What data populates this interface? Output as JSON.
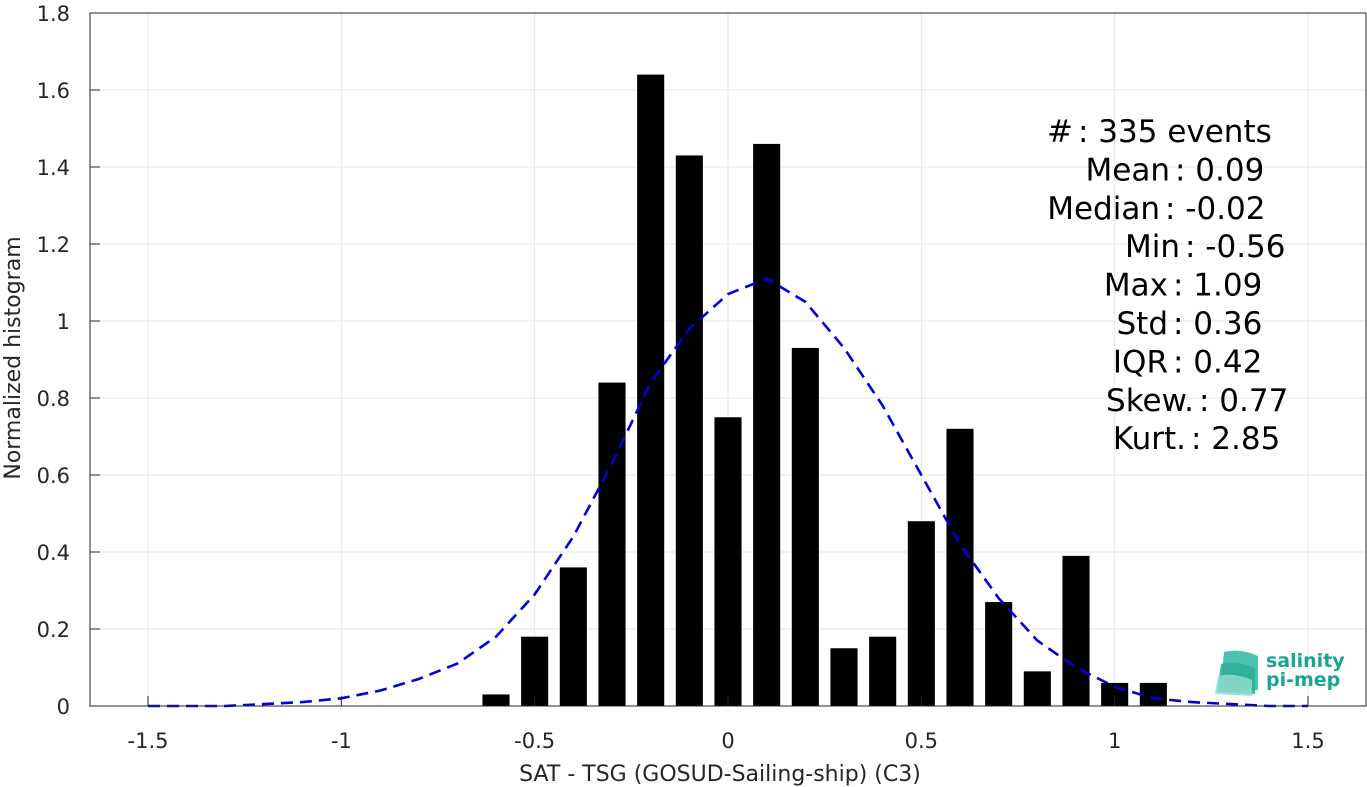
{
  "chart_data": {
    "type": "bar",
    "xlabel": "SAT - TSG (GOSUD-Sailing-ship) (C3)",
    "ylabel": "Normalized histogram",
    "xlim": [
      -1.65,
      1.65
    ],
    "ylim": [
      0,
      1.8
    ],
    "x_ticks": [
      -1.5,
      -1,
      -0.5,
      0,
      0.5,
      1,
      1.5
    ],
    "x_tick_labels": [
      "-1.5",
      "-1",
      "-0.5",
      "0",
      "0.5",
      "1",
      "1.5"
    ],
    "y_ticks": [
      0,
      0.2,
      0.4,
      0.6,
      0.8,
      1,
      1.2,
      1.4,
      1.6,
      1.8
    ],
    "y_tick_labels": [
      "0",
      "0.2",
      "0.4",
      "0.6",
      "0.8",
      "1",
      "1.2",
      "1.4",
      "1.6",
      "1.8"
    ],
    "grid": true,
    "bar_color": "#000000",
    "bar_width": 0.07,
    "bins": {
      "x": [
        -0.6,
        -0.5,
        -0.4,
        -0.3,
        -0.2,
        -0.1,
        0.0,
        0.1,
        0.2,
        0.3,
        0.4,
        0.5,
        0.6,
        0.7,
        0.8,
        0.9,
        1.0,
        1.1
      ],
      "values": [
        0.03,
        0.18,
        0.36,
        0.84,
        1.64,
        1.43,
        0.75,
        1.46,
        0.93,
        0.15,
        0.18,
        0.48,
        0.72,
        0.27,
        0.09,
        0.39,
        0.06,
        0.06
      ]
    },
    "fit_curve": {
      "style": "dashed",
      "color": "#0000dd",
      "x": [
        -1.5,
        -1.4,
        -1.3,
        -1.2,
        -1.1,
        -1.0,
        -0.9,
        -0.8,
        -0.7,
        -0.6,
        -0.5,
        -0.4,
        -0.3,
        -0.2,
        -0.1,
        0.0,
        0.1,
        0.2,
        0.3,
        0.4,
        0.5,
        0.6,
        0.7,
        0.8,
        0.9,
        1.0,
        1.1,
        1.2,
        1.3,
        1.4,
        1.5
      ],
      "values": [
        0.0,
        0.0,
        0.0,
        0.005,
        0.01,
        0.02,
        0.04,
        0.07,
        0.11,
        0.18,
        0.29,
        0.44,
        0.63,
        0.84,
        0.98,
        1.07,
        1.11,
        1.05,
        0.93,
        0.78,
        0.6,
        0.42,
        0.28,
        0.17,
        0.1,
        0.05,
        0.02,
        0.01,
        0.005,
        0.0,
        0.0
      ]
    },
    "stats": [
      {
        "label": "#  ",
        "value": ": 335 events"
      },
      {
        "label": "Mean",
        "value": ": 0.09"
      },
      {
        "label": "Median",
        "value": ": -0.02"
      },
      {
        "label": "Min",
        "value": ": -0.56"
      },
      {
        "label": "Max",
        "value": ": 1.09"
      },
      {
        "label": "Std",
        "value": ": 0.36"
      },
      {
        "label": "IQR",
        "value": ": 0.42"
      },
      {
        "label": "Skew.",
        "value": ": 0.77"
      },
      {
        "label": "Kurt.",
        "value": ": 2.85"
      }
    ]
  },
  "logo": {
    "line1": "salinity",
    "line2": "pi-mep"
  }
}
